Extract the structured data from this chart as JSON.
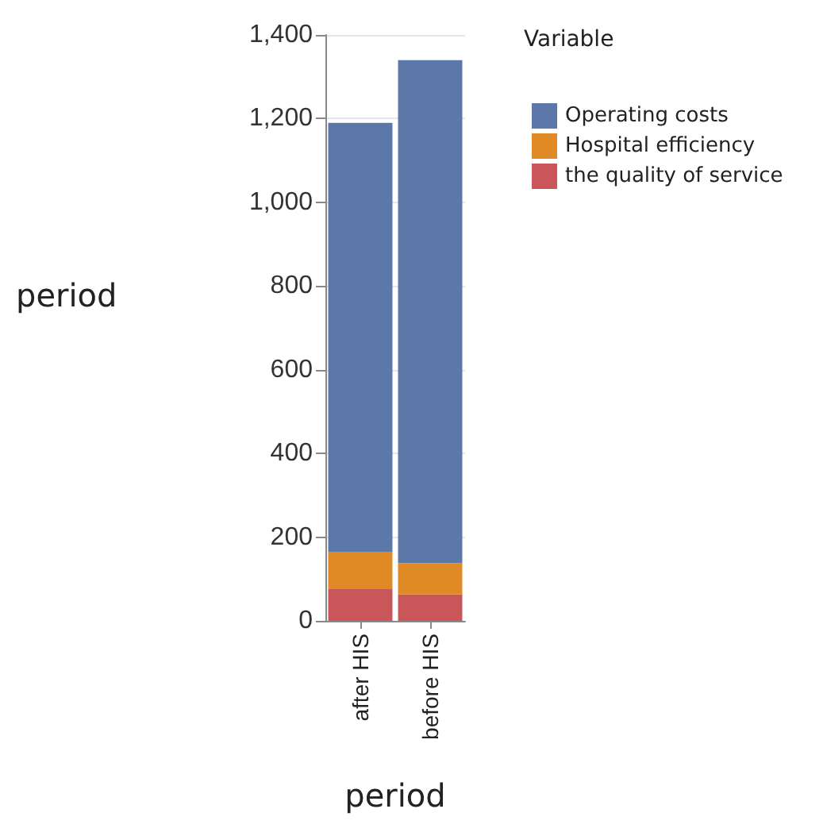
{
  "chart_data": {
    "type": "bar",
    "stacked": true,
    "xlabel": "period",
    "ylabel": "period",
    "legend_title": "Variable",
    "categories": [
      "after HIS",
      "before HIS"
    ],
    "series": [
      {
        "name": "the quality of service",
        "color": "#c9575a",
        "values": [
          76,
          63
        ]
      },
      {
        "name": "Hospital efficiency",
        "color": "#e08a26",
        "values": [
          89,
          75
        ]
      },
      {
        "name": "Operating costs",
        "color": "#5b78a8",
        "values": [
          1025,
          1202
        ]
      }
    ],
    "ylim": [
      0,
      1400
    ],
    "yticks": [
      0,
      200,
      400,
      600,
      800,
      {
        "value": 1000,
        "label": "1,000"
      },
      {
        "value": 1200,
        "label": "1,200"
      },
      {
        "value": 1400,
        "label": "1,400"
      }
    ],
    "grid": "y",
    "legend": "top right"
  }
}
